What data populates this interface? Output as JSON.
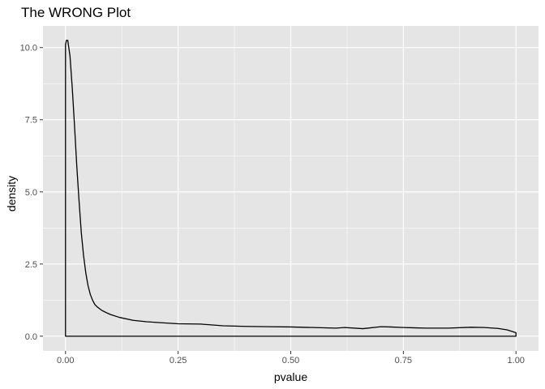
{
  "chart_data": {
    "type": "line",
    "title": "The WRONG Plot",
    "xlabel": "pvalue",
    "ylabel": "density",
    "xlim": [
      -0.05,
      1.05
    ],
    "ylim": [
      -0.51,
      10.75
    ],
    "x_ticks": [
      0.0,
      0.25,
      0.5,
      0.75,
      1.0
    ],
    "x_tick_labels": [
      "0.00",
      "0.25",
      "0.50",
      "0.75",
      "1.00"
    ],
    "y_ticks": [
      0.0,
      2.5,
      5.0,
      7.5,
      10.0
    ],
    "y_tick_labels": [
      "0.0",
      "2.5",
      "5.0",
      "7.5",
      "10.0"
    ],
    "grid": true,
    "legend": "none",
    "colors": {
      "panel": "#E5E5E5",
      "grid": "#FFFFFF",
      "line": "#000000",
      "ticks": "#333333"
    },
    "series": [
      {
        "x": [
          0.0,
          0.002,
          0.005,
          0.01,
          0.015,
          0.02,
          0.025,
          0.03,
          0.035,
          0.04,
          0.045,
          0.05,
          0.055,
          0.06,
          0.065,
          0.07,
          0.08,
          0.09,
          0.1,
          0.12,
          0.15,
          0.18,
          0.21,
          0.25,
          0.3,
          0.35,
          0.4,
          0.45,
          0.5,
          0.55,
          0.6,
          0.62,
          0.66,
          0.7,
          0.72,
          0.75,
          0.8,
          0.85,
          0.9,
          0.93,
          0.96,
          0.98,
          1.0
        ],
        "y": [
          10.1,
          10.25,
          10.25,
          9.7,
          8.6,
          7.3,
          5.9,
          4.7,
          3.6,
          2.8,
          2.2,
          1.75,
          1.45,
          1.25,
          1.1,
          1.02,
          0.9,
          0.82,
          0.75,
          0.65,
          0.55,
          0.5,
          0.47,
          0.43,
          0.42,
          0.36,
          0.34,
          0.33,
          0.32,
          0.3,
          0.28,
          0.3,
          0.26,
          0.33,
          0.32,
          0.3,
          0.28,
          0.28,
          0.31,
          0.3,
          0.27,
          0.22,
          0.12
        ]
      }
    ]
  }
}
